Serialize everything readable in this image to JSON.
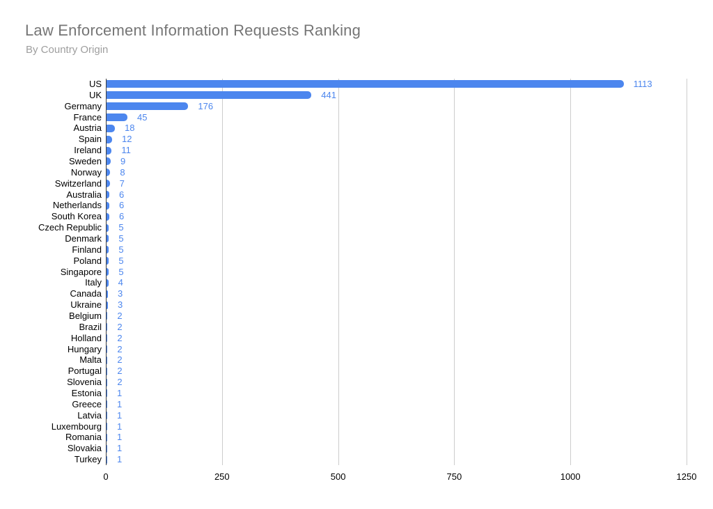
{
  "header": {
    "title": "Law Enforcement Information Requests Ranking",
    "subtitle": "By Country Origin"
  },
  "chart_data": {
    "type": "bar",
    "orientation": "horizontal",
    "title": "Law Enforcement Information Requests Ranking",
    "subtitle": "By Country Origin",
    "categories": [
      "US",
      "UK",
      "Germany",
      "France",
      "Austria",
      "Spain",
      "Ireland",
      "Sweden",
      "Norway",
      "Switzerland",
      "Australia",
      "Netherlands",
      "South Korea",
      "Czech Republic",
      "Denmark",
      "Finland",
      "Poland",
      "Singapore",
      "Italy",
      "Canada",
      "Ukraine",
      "Belgium",
      "Brazil",
      "Holland",
      "Hungary",
      "Malta",
      "Portugal",
      "Slovenia",
      "Estonia",
      "Greece",
      "Latvia",
      "Luxembourg",
      "Romania",
      "Slovakia",
      "Turkey"
    ],
    "values": [
      1113,
      441,
      176,
      45,
      18,
      12,
      11,
      9,
      8,
      7,
      6,
      6,
      6,
      5,
      5,
      5,
      5,
      5,
      4,
      3,
      3,
      2,
      2,
      2,
      2,
      2,
      2,
      2,
      1,
      1,
      1,
      1,
      1,
      1,
      1
    ],
    "x_ticks": [
      0,
      250,
      500,
      750,
      1000,
      1250
    ],
    "xlim": [
      0,
      1250
    ],
    "grid": true,
    "value_labels_shown": true,
    "legend_position": "none",
    "xlabel": "",
    "ylabel": "",
    "colors": {
      "bar": "#4c86ee",
      "value_label": "#4c86ee",
      "title": "#757575",
      "subtitle": "#9e9e9e",
      "axis_text": "#000000",
      "gridline": "#cccccc",
      "axis_line": "#3c3c3c",
      "background": "#ffffff"
    }
  }
}
